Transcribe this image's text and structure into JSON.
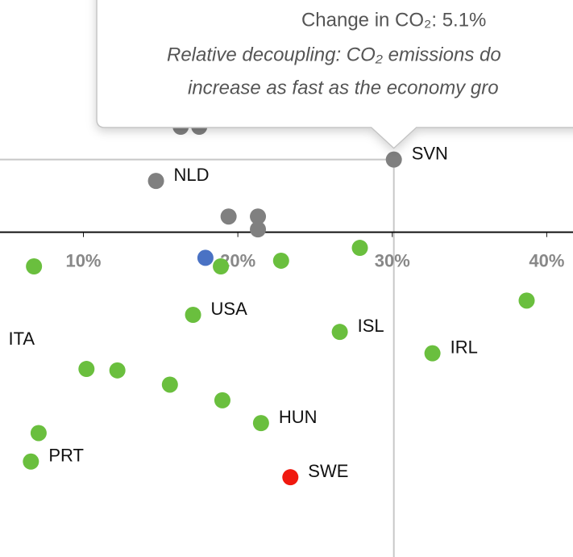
{
  "chart_data": {
    "type": "scatter",
    "xlim": [
      4.6,
      41.7
    ],
    "ylim": [
      -22.8,
      16.3
    ],
    "xticks": [
      {
        "value": 10,
        "label": "10%"
      },
      {
        "value": 20,
        "label": "20%"
      },
      {
        "value": 30,
        "label": "30%"
      },
      {
        "value": 40,
        "label": "40%"
      }
    ],
    "series": [
      {
        "color": "#808080",
        "x": [
          16.3,
          17.5,
          14.7,
          30.1,
          19.4,
          21.3,
          21.3
        ],
        "values": [
          7.4,
          7.4,
          3.6,
          5.1,
          1.1,
          1.1,
          0.2
        ],
        "labels": [
          null,
          null,
          "NLD",
          "SVN",
          null,
          null,
          null
        ]
      },
      {
        "color": "#4a72c4",
        "x": [
          17.9
        ],
        "values": [
          -1.8
        ],
        "labels": [
          null
        ]
      },
      {
        "color": "#6abf3e",
        "x": [
          6.8,
          18.9,
          22.8,
          27.9,
          38.7,
          17.1,
          26.6,
          32.6,
          10.2,
          12.2,
          15.6,
          19.0,
          21.5,
          7.1,
          6.6,
          4.0
        ],
        "values": [
          -2.4,
          -2.4,
          -2.0,
          -1.1,
          -4.8,
          -5.8,
          -7.0,
          -8.5,
          -9.6,
          -9.7,
          -10.7,
          -11.8,
          -13.4,
          -14.1,
          -16.1,
          -7.9
        ],
        "labels": [
          null,
          null,
          null,
          null,
          null,
          "USA",
          "ISL",
          "IRL",
          null,
          null,
          null,
          null,
          "HUN",
          null,
          "PRT",
          "ITA"
        ]
      },
      {
        "color": "#f0190f",
        "x": [
          23.4
        ],
        "values": [
          -17.2
        ],
        "labels": [
          "SWE"
        ]
      }
    ],
    "tooltip": {
      "title": "Change in CO₂: 5.1%",
      "lines": [
        "Relative decoupling: CO₂ emissions do",
        "increase as fast as the economy gro"
      ]
    }
  }
}
